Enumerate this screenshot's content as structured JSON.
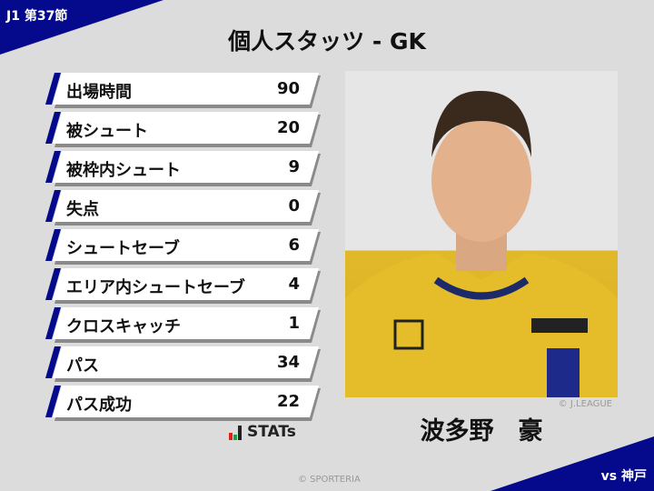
{
  "header": {
    "round": "J1 第37節",
    "title": "個人スタッツ - GK",
    "opponent": "vs 神戸"
  },
  "stats": [
    {
      "label": "出場時間",
      "value": "90"
    },
    {
      "label": "被シュート",
      "value": "20"
    },
    {
      "label": "被枠内シュート",
      "value": "9"
    },
    {
      "label": "失点",
      "value": "0"
    },
    {
      "label": "シュートセーブ",
      "value": "6"
    },
    {
      "label": "エリア内シュートセーブ",
      "value": "4"
    },
    {
      "label": "クロスキャッチ",
      "value": "1"
    },
    {
      "label": "パス",
      "value": "34"
    },
    {
      "label": "パス成功",
      "value": "22"
    }
  ],
  "player": {
    "name": "波多野　豪",
    "photo_credit": "© J.LEAGUE"
  },
  "brand": {
    "stats_logo": "STATs",
    "copyright": "© SPORTERIA"
  },
  "colors": {
    "accent": "#050a8c",
    "background": "#dcdcdc",
    "kit": "#e0b92a"
  }
}
